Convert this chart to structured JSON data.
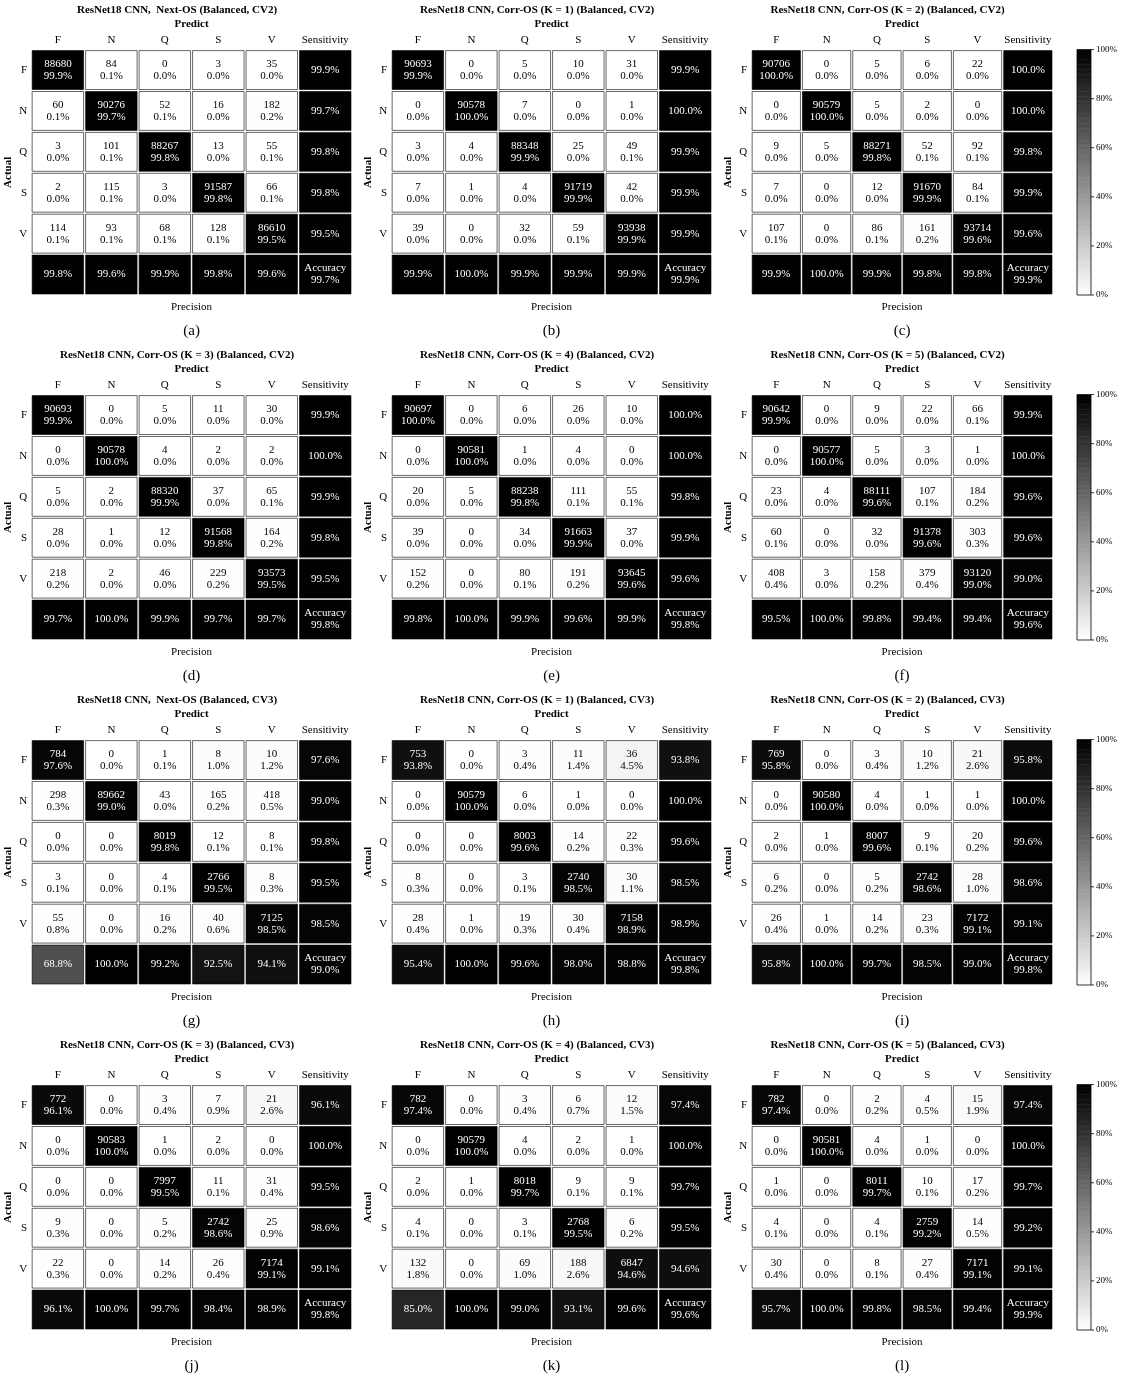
{
  "chart_data": [
    {
      "type": "heatmap",
      "title": "ResNet18 CNN,  Next-OS (Balanced, CV2)",
      "xlabel": "Predict",
      "ylabel": "Actual",
      "categories": [
        "F",
        "N",
        "Q",
        "S",
        "V",
        "Sensitivity"
      ],
      "y_categories": [
        "F",
        "N",
        "Q",
        "S",
        "V",
        null
      ],
      "cells": [
        [
          99.9,
          0.1,
          0.0,
          0.0,
          0.0,
          99.9
        ],
        [
          0.1,
          99.7,
          0.1,
          0.0,
          0.2,
          99.7
        ],
        [
          0.0,
          0.1,
          99.8,
          0.0,
          0.1,
          99.8
        ],
        [
          0.0,
          0.1,
          0.0,
          99.8,
          0.1,
          99.8
        ],
        [
          0.1,
          0.1,
          0.1,
          0.1,
          99.5,
          99.5
        ],
        [
          99.8,
          99.6,
          99.9,
          99.8,
          99.6,
          99.7
        ]
      ],
      "cell_labels": [
        [
          "99.9%",
          "0.1%",
          "0.0%",
          "0.0%",
          "0.0%",
          "99.9%"
        ],
        [
          "0.1%",
          "99.7%",
          "0.1%",
          "0.0%",
          "0.2%",
          "99.7%"
        ],
        [
          "0.0%",
          "0.1%",
          "99.8%",
          "0.0%",
          "0.1%",
          "99.8%"
        ],
        [
          "0.0%",
          "0.1%",
          "0.0%",
          "99.8%",
          "0.1%",
          "99.8%"
        ],
        [
          "0.1%",
          "0.1%",
          "0.1%",
          "0.1%",
          "99.5%",
          "99.5%"
        ],
        [
          "99.8%",
          "99.6%",
          "99.9%",
          "99.8%",
          "99.6%",
          "99.7%"
        ]
      ],
      "annotations": [
        "Precision",
        "(a)",
        "Accuracy",
        "88680",
        "84",
        "0",
        "3",
        "35",
        "60",
        "90276",
        "52",
        "16",
        "182",
        "3",
        "101",
        "88267",
        "13",
        "55",
        "2",
        "115",
        "3",
        "91587",
        "66",
        "114",
        "93",
        "68",
        "128",
        "86610"
      ]
    },
    {
      "type": "heatmap",
      "title": "ResNet18 CNN, Corr-OS (K = 1) (Balanced, CV2)",
      "xlabel": "Predict",
      "ylabel": "Actual",
      "categories": [
        "F",
        "N",
        "Q",
        "S",
        "V",
        "Sensitivity"
      ],
      "y_categories": [
        "F",
        "N",
        "Q",
        "S",
        "V",
        null
      ],
      "cells": [
        [
          99.9,
          0.0,
          0.0,
          0.0,
          0.0,
          99.9
        ],
        [
          0.0,
          100.0,
          0.0,
          0.0,
          0.0,
          100.0
        ],
        [
          0.0,
          0.0,
          99.9,
          0.0,
          0.1,
          99.9
        ],
        [
          0.0,
          0.0,
          0.0,
          99.9,
          0.0,
          99.9
        ],
        [
          0.0,
          0.0,
          0.0,
          0.1,
          99.9,
          99.9
        ],
        [
          99.9,
          100.0,
          99.9,
          99.9,
          99.9,
          99.9
        ]
      ],
      "cell_labels": [
        [
          "99.9%",
          "0.0%",
          "0.0%",
          "0.0%",
          "0.0%",
          "99.9%"
        ],
        [
          "0.0%",
          "100.0%",
          "0.0%",
          "0.0%",
          "0.0%",
          "100.0%"
        ],
        [
          "0.0%",
          "0.0%",
          "99.9%",
          "0.0%",
          "0.1%",
          "99.9%"
        ],
        [
          "0.0%",
          "0.0%",
          "0.0%",
          "99.9%",
          "0.0%",
          "99.9%"
        ],
        [
          "0.0%",
          "0.0%",
          "0.0%",
          "0.1%",
          "99.9%",
          "99.9%"
        ],
        [
          "99.9%",
          "100.0%",
          "99.9%",
          "99.9%",
          "99.9%",
          "99.9%"
        ]
      ],
      "annotations": [
        "Precision",
        "(b)",
        "Accuracy",
        "90693",
        "0",
        "5",
        "10",
        "31",
        "0",
        "90578",
        "7",
        "0",
        "1",
        "3",
        "4",
        "88348",
        "25",
        "49",
        "7",
        "1",
        "4",
        "91719",
        "42",
        "39",
        "0",
        "32",
        "59",
        "93938"
      ]
    },
    {
      "type": "heatmap",
      "title": "ResNet18 CNN, Corr-OS (K = 2) (Balanced, CV2)",
      "xlabel": "Predict",
      "ylabel": "Actual",
      "categories": [
        "F",
        "N",
        "Q",
        "S",
        "V",
        "Sensitivity"
      ],
      "y_categories": [
        "F",
        "N",
        "Q",
        "S",
        "V",
        null
      ],
      "cells": [
        [
          100.0,
          0.0,
          0.0,
          0.0,
          0.0,
          100.0
        ],
        [
          0.0,
          100.0,
          0.0,
          0.0,
          0.0,
          100.0
        ],
        [
          0.0,
          0.0,
          99.8,
          0.1,
          0.1,
          99.8
        ],
        [
          0.0,
          0.0,
          0.0,
          99.9,
          0.1,
          99.9
        ],
        [
          0.1,
          0.0,
          0.1,
          0.2,
          99.6,
          99.6
        ],
        [
          99.9,
          100.0,
          99.9,
          99.8,
          99.8,
          99.9
        ]
      ],
      "cell_labels": [
        [
          "100.0%",
          "0.0%",
          "0.0%",
          "0.0%",
          "0.0%",
          "100.0%"
        ],
        [
          "0.0%",
          "100.0%",
          "0.0%",
          "0.0%",
          "0.0%",
          "100.0%"
        ],
        [
          "0.0%",
          "0.0%",
          "99.8%",
          "0.1%",
          "0.1%",
          "99.8%"
        ],
        [
          "0.0%",
          "0.0%",
          "0.0%",
          "99.9%",
          "0.1%",
          "99.9%"
        ],
        [
          "0.1%",
          "0.0%",
          "0.1%",
          "0.2%",
          "99.6%",
          "99.6%"
        ],
        [
          "99.9%",
          "100.0%",
          "99.9%",
          "99.8%",
          "99.8%",
          "99.9%"
        ]
      ],
      "clim": [
        0,
        100
      ],
      "cticks": [
        {
          "value": 0,
          "label": "0%"
        },
        {
          "value": 20,
          "label": "20%"
        },
        {
          "value": 40,
          "label": "40%"
        },
        {
          "value": 60,
          "label": "60%"
        },
        {
          "value": 80,
          "label": "80%"
        },
        {
          "value": 100,
          "label": "100%"
        }
      ],
      "annotations": [
        "Precision",
        "(c)",
        "Accuracy",
        "90706",
        "0",
        "5",
        "6",
        "22",
        "0",
        "90579",
        "5",
        "2",
        "0",
        "9",
        "5",
        "88271",
        "52",
        "92",
        "7",
        "0",
        "12",
        "91670",
        "84",
        "107",
        "0",
        "86",
        "161",
        "93714"
      ]
    },
    {
      "type": "heatmap",
      "title": "ResNet18 CNN, Corr-OS (K = 3) (Balanced, CV2)",
      "xlabel": "Predict",
      "ylabel": "Actual",
      "categories": [
        "F",
        "N",
        "Q",
        "S",
        "V",
        "Sensitivity"
      ],
      "y_categories": [
        "F",
        "N",
        "Q",
        "S",
        "V",
        null
      ],
      "cells": [
        [
          99.9,
          0.0,
          0.0,
          0.0,
          0.0,
          99.9
        ],
        [
          0.0,
          100.0,
          0.0,
          0.0,
          0.0,
          100.0
        ],
        [
          0.0,
          0.0,
          99.9,
          0.0,
          0.1,
          99.9
        ],
        [
          0.0,
          0.0,
          0.0,
          99.8,
          0.2,
          99.8
        ],
        [
          0.2,
          0.0,
          0.0,
          0.2,
          99.5,
          99.5
        ],
        [
          99.7,
          100.0,
          99.9,
          99.7,
          99.7,
          99.8
        ]
      ],
      "cell_labels": [
        [
          "99.9%",
          "0.0%",
          "0.0%",
          "0.0%",
          "0.0%",
          "99.9%"
        ],
        [
          "0.0%",
          "100.0%",
          "0.0%",
          "0.0%",
          "0.0%",
          "100.0%"
        ],
        [
          "0.0%",
          "0.0%",
          "99.9%",
          "0.0%",
          "0.1%",
          "99.9%"
        ],
        [
          "0.0%",
          "0.0%",
          "0.0%",
          "99.8%",
          "0.2%",
          "99.8%"
        ],
        [
          "0.2%",
          "0.0%",
          "0.0%",
          "0.2%",
          "99.5%",
          "99.5%"
        ],
        [
          "99.7%",
          "100.0%",
          "99.9%",
          "99.7%",
          "99.7%",
          "99.8%"
        ]
      ],
      "annotations": [
        "Precision",
        "(d)",
        "Accuracy",
        "90693",
        "0",
        "5",
        "11",
        "30",
        "0",
        "90578",
        "4",
        "2",
        "2",
        "5",
        "2",
        "88320",
        "37",
        "65",
        "28",
        "1",
        "12",
        "91568",
        "164",
        "218",
        "2",
        "46",
        "229",
        "93573"
      ]
    },
    {
      "type": "heatmap",
      "title": "ResNet18 CNN, Corr-OS (K = 4) (Balanced, CV2)",
      "xlabel": "Predict",
      "ylabel": "Actual",
      "categories": [
        "F",
        "N",
        "Q",
        "S",
        "V",
        "Sensitivity"
      ],
      "y_categories": [
        "F",
        "N",
        "Q",
        "S",
        "V",
        null
      ],
      "cells": [
        [
          100.0,
          0.0,
          0.0,
          0.0,
          0.0,
          100.0
        ],
        [
          0.0,
          100.0,
          0.0,
          0.0,
          0.0,
          100.0
        ],
        [
          0.0,
          0.0,
          99.8,
          0.1,
          0.1,
          99.8
        ],
        [
          0.0,
          0.0,
          0.0,
          99.9,
          0.0,
          99.9
        ],
        [
          0.2,
          0.0,
          0.1,
          0.2,
          99.6,
          99.6
        ],
        [
          99.8,
          100.0,
          99.9,
          99.6,
          99.9,
          99.8
        ]
      ],
      "cell_labels": [
        [
          "100.0%",
          "0.0%",
          "0.0%",
          "0.0%",
          "0.0%",
          "100.0%"
        ],
        [
          "0.0%",
          "100.0%",
          "0.0%",
          "0.0%",
          "0.0%",
          "100.0%"
        ],
        [
          "0.0%",
          "0.0%",
          "99.8%",
          "0.1%",
          "0.1%",
          "99.8%"
        ],
        [
          "0.0%",
          "0.0%",
          "0.0%",
          "99.9%",
          "0.0%",
          "99.9%"
        ],
        [
          "0.2%",
          "0.0%",
          "0.1%",
          "0.2%",
          "99.6%",
          "99.6%"
        ],
        [
          "99.8%",
          "100.0%",
          "99.9%",
          "99.6%",
          "99.9%",
          "99.8%"
        ]
      ],
      "annotations": [
        "Precision",
        "(e)",
        "Accuracy",
        "90697",
        "0",
        "6",
        "26",
        "10",
        "0",
        "90581",
        "1",
        "4",
        "0",
        "20",
        "5",
        "88238",
        "111",
        "55",
        "39",
        "0",
        "34",
        "91663",
        "37",
        "152",
        "0",
        "80",
        "191",
        "93645"
      ]
    },
    {
      "type": "heatmap",
      "title": "ResNet18 CNN, Corr-OS (K = 5) (Balanced, CV2)",
      "xlabel": "Predict",
      "ylabel": "Actual",
      "categories": [
        "F",
        "N",
        "Q",
        "S",
        "V",
        "Sensitivity"
      ],
      "y_categories": [
        "F",
        "N",
        "Q",
        "S",
        "V",
        null
      ],
      "cells": [
        [
          99.9,
          0.0,
          0.0,
          0.0,
          0.1,
          99.9
        ],
        [
          0.0,
          100.0,
          0.0,
          0.0,
          0.0,
          100.0
        ],
        [
          0.0,
          0.0,
          99.6,
          0.1,
          0.2,
          99.6
        ],
        [
          0.1,
          0.0,
          0.0,
          99.6,
          0.3,
          99.6
        ],
        [
          0.4,
          0.0,
          0.2,
          0.4,
          99.0,
          99.0
        ],
        [
          99.5,
          100.0,
          99.8,
          99.4,
          99.4,
          99.6
        ]
      ],
      "cell_labels": [
        [
          "99.9%",
          "0.0%",
          "0.0%",
          "0.0%",
          "0.1%",
          "99.9%"
        ],
        [
          "0.0%",
          "100.0%",
          "0.0%",
          "0.0%",
          "0.0%",
          "100.0%"
        ],
        [
          "0.0%",
          "0.0%",
          "99.6%",
          "0.1%",
          "0.2%",
          "99.6%"
        ],
        [
          "0.1%",
          "0.0%",
          "0.0%",
          "99.6%",
          "0.3%",
          "99.6%"
        ],
        [
          "0.4%",
          "0.0%",
          "0.2%",
          "0.4%",
          "99.0%",
          "99.0%"
        ],
        [
          "99.5%",
          "100.0%",
          "99.8%",
          "99.4%",
          "99.4%",
          "99.6%"
        ]
      ],
      "clim": [
        0,
        100
      ],
      "cticks": [
        {
          "value": 0,
          "label": "0%"
        },
        {
          "value": 20,
          "label": "20%"
        },
        {
          "value": 40,
          "label": "40%"
        },
        {
          "value": 60,
          "label": "60%"
        },
        {
          "value": 80,
          "label": "80%"
        },
        {
          "value": 100,
          "label": "100%"
        }
      ],
      "annotations": [
        "Precision",
        "(f)",
        "Accuracy",
        "90642",
        "0",
        "9",
        "22",
        "66",
        "0",
        "90577",
        "5",
        "3",
        "1",
        "23",
        "4",
        "88111",
        "107",
        "184",
        "60",
        "0",
        "32",
        "91378",
        "303",
        "408",
        "3",
        "158",
        "379",
        "93120"
      ]
    },
    {
      "type": "heatmap",
      "title": "ResNet18 CNN,  Next-OS (Balanced, CV3)",
      "xlabel": "Predict",
      "ylabel": "Actual",
      "categories": [
        "F",
        "N",
        "Q",
        "S",
        "V",
        "Sensitivity"
      ],
      "y_categories": [
        "F",
        "N",
        "Q",
        "S",
        "V",
        null
      ],
      "cells": [
        [
          97.6,
          0.0,
          0.1,
          1.0,
          1.2,
          97.6
        ],
        [
          0.3,
          99.0,
          0.0,
          0.2,
          0.5,
          99.0
        ],
        [
          0.0,
          0.0,
          99.8,
          0.1,
          0.1,
          99.8
        ],
        [
          0.1,
          0.0,
          0.1,
          99.5,
          0.3,
          99.5
        ],
        [
          0.8,
          0.0,
          0.2,
          0.6,
          98.5,
          98.5
        ],
        [
          68.8,
          100.0,
          99.2,
          92.5,
          94.1,
          99.0
        ]
      ],
      "cell_labels": [
        [
          "97.6%",
          "0.0%",
          "0.1%",
          "1.0%",
          "1.2%",
          "97.6%"
        ],
        [
          "0.3%",
          "99.0%",
          "0.0%",
          "0.2%",
          "0.5%",
          "99.0%"
        ],
        [
          "0.0%",
          "0.0%",
          "99.8%",
          "0.1%",
          "0.1%",
          "99.8%"
        ],
        [
          "0.1%",
          "0.0%",
          "0.1%",
          "99.5%",
          "0.3%",
          "99.5%"
        ],
        [
          "0.8%",
          "0.0%",
          "0.2%",
          "0.6%",
          "98.5%",
          "98.5%"
        ],
        [
          "68.8%",
          "100.0%",
          "99.2%",
          "92.5%",
          "94.1%",
          "99.0%"
        ]
      ],
      "annotations": [
        "Precision",
        "(g)",
        "Accuracy",
        "784",
        "0",
        "1",
        "8",
        "10",
        "298",
        "89662",
        "43",
        "165",
        "418",
        "0",
        "0",
        "8019",
        "12",
        "8",
        "3",
        "0",
        "4",
        "2766",
        "8",
        "55",
        "0",
        "16",
        "40",
        "7125"
      ]
    },
    {
      "type": "heatmap",
      "title": "ResNet18 CNN, Corr-OS (K = 1) (Balanced, CV3)",
      "xlabel": "Predict",
      "ylabel": "Actual",
      "categories": [
        "F",
        "N",
        "Q",
        "S",
        "V",
        "Sensitivity"
      ],
      "y_categories": [
        "F",
        "N",
        "Q",
        "S",
        "V",
        null
      ],
      "cells": [
        [
          93.8,
          0.0,
          0.4,
          1.4,
          4.5,
          93.8
        ],
        [
          0.0,
          100.0,
          0.0,
          0.0,
          0.0,
          100.0
        ],
        [
          0.0,
          0.0,
          99.6,
          0.2,
          0.3,
          99.6
        ],
        [
          0.3,
          0.0,
          0.1,
          98.5,
          1.1,
          98.5
        ],
        [
          0.4,
          0.0,
          0.3,
          0.4,
          98.9,
          98.9
        ],
        [
          95.4,
          100.0,
          99.6,
          98.0,
          98.8,
          99.8
        ]
      ],
      "cell_labels": [
        [
          "93.8%",
          "0.0%",
          "0.4%",
          "1.4%",
          "4.5%",
          "93.8%"
        ],
        [
          "0.0%",
          "100.0%",
          "0.0%",
          "0.0%",
          "0.0%",
          "100.0%"
        ],
        [
          "0.0%",
          "0.0%",
          "99.6%",
          "0.2%",
          "0.3%",
          "99.6%"
        ],
        [
          "0.3%",
          "0.0%",
          "0.1%",
          "98.5%",
          "1.1%",
          "98.5%"
        ],
        [
          "0.4%",
          "0.0%",
          "0.3%",
          "0.4%",
          "98.9%",
          "98.9%"
        ],
        [
          "95.4%",
          "100.0%",
          "99.6%",
          "98.0%",
          "98.8%",
          "99.8%"
        ]
      ],
      "annotations": [
        "Precision",
        "(h)",
        "Accuracy",
        "753",
        "0",
        "3",
        "11",
        "36",
        "0",
        "90579",
        "6",
        "1",
        "0",
        "0",
        "0",
        "8003",
        "14",
        "22",
        "8",
        "0",
        "3",
        "2740",
        "30",
        "28",
        "1",
        "19",
        "30",
        "7158"
      ]
    },
    {
      "type": "heatmap",
      "title": "ResNet18 CNN, Corr-OS (K = 2) (Balanced, CV3)",
      "xlabel": "Predict",
      "ylabel": "Actual",
      "categories": [
        "F",
        "N",
        "Q",
        "S",
        "V",
        "Sensitivity"
      ],
      "y_categories": [
        "F",
        "N",
        "Q",
        "S",
        "V",
        null
      ],
      "cells": [
        [
          95.8,
          0.0,
          0.4,
          1.2,
          2.6,
          95.8
        ],
        [
          0.0,
          100.0,
          0.0,
          0.0,
          0.0,
          100.0
        ],
        [
          0.0,
          0.0,
          99.6,
          0.1,
          0.2,
          99.6
        ],
        [
          0.2,
          0.0,
          0.2,
          98.6,
          1.0,
          98.6
        ],
        [
          0.4,
          0.0,
          0.2,
          0.3,
          99.1,
          99.1
        ],
        [
          95.8,
          100.0,
          99.7,
          98.5,
          99.0,
          99.8
        ]
      ],
      "cell_labels": [
        [
          "95.8%",
          "0.0%",
          "0.4%",
          "1.2%",
          "2.6%",
          "95.8%"
        ],
        [
          "0.0%",
          "100.0%",
          "0.0%",
          "0.0%",
          "0.0%",
          "100.0%"
        ],
        [
          "0.0%",
          "0.0%",
          "99.6%",
          "0.1%",
          "0.2%",
          "99.6%"
        ],
        [
          "0.2%",
          "0.0%",
          "0.2%",
          "98.6%",
          "1.0%",
          "98.6%"
        ],
        [
          "0.4%",
          "0.0%",
          "0.2%",
          "0.3%",
          "99.1%",
          "99.1%"
        ],
        [
          "95.8%",
          "100.0%",
          "99.7%",
          "98.5%",
          "99.0%",
          "99.8%"
        ]
      ],
      "clim": [
        0,
        100
      ],
      "cticks": [
        {
          "value": 0,
          "label": "0%"
        },
        {
          "value": 20,
          "label": "20%"
        },
        {
          "value": 40,
          "label": "40%"
        },
        {
          "value": 60,
          "label": "60%"
        },
        {
          "value": 80,
          "label": "80%"
        },
        {
          "value": 100,
          "label": "100%"
        }
      ],
      "annotations": [
        "Precision",
        "(i)",
        "Accuracy",
        "769",
        "0",
        "3",
        "10",
        "21",
        "0",
        "90580",
        "4",
        "1",
        "1",
        "2",
        "1",
        "8007",
        "9",
        "20",
        "6",
        "0",
        "5",
        "2742",
        "28",
        "26",
        "1",
        "14",
        "23",
        "7172"
      ]
    },
    {
      "type": "heatmap",
      "title": "ResNet18 CNN, Corr-OS (K = 3) (Balanced, CV3)",
      "xlabel": "Predict",
      "ylabel": "Actual",
      "categories": [
        "F",
        "N",
        "Q",
        "S",
        "V",
        "Sensitivity"
      ],
      "y_categories": [
        "F",
        "N",
        "Q",
        "S",
        "V",
        null
      ],
      "cells": [
        [
          96.1,
          0.0,
          0.4,
          0.9,
          2.6,
          96.1
        ],
        [
          0.0,
          100.0,
          0.0,
          0.0,
          0.0,
          100.0
        ],
        [
          0.0,
          0.0,
          99.5,
          0.1,
          0.4,
          99.5
        ],
        [
          0.3,
          0.0,
          0.2,
          98.6,
          0.9,
          98.6
        ],
        [
          0.3,
          0.0,
          0.2,
          0.4,
          99.1,
          99.1
        ],
        [
          96.1,
          100.0,
          99.7,
          98.4,
          98.9,
          99.8
        ]
      ],
      "cell_labels": [
        [
          "96.1%",
          "0.0%",
          "0.4%",
          "0.9%",
          "2.6%",
          "96.1%"
        ],
        [
          "0.0%",
          "100.0%",
          "0.0%",
          "0.0%",
          "0.0%",
          "100.0%"
        ],
        [
          "0.0%",
          "0.0%",
          "99.5%",
          "0.1%",
          "0.4%",
          "99.5%"
        ],
        [
          "0.3%",
          "0.0%",
          "0.2%",
          "98.6%",
          "0.9%",
          "98.6%"
        ],
        [
          "0.3%",
          "0.0%",
          "0.2%",
          "0.4%",
          "99.1%",
          "99.1%"
        ],
        [
          "96.1%",
          "100.0%",
          "99.7%",
          "98.4%",
          "98.9%",
          "99.8%"
        ]
      ],
      "annotations": [
        "Precision",
        "(j)",
        "Accuracy",
        "772",
        "0",
        "3",
        "7",
        "21",
        "0",
        "90583",
        "1",
        "2",
        "0",
        "0",
        "0",
        "7997",
        "11",
        "31",
        "9",
        "0",
        "5",
        "2742",
        "25",
        "22",
        "0",
        "14",
        "26",
        "7174"
      ]
    },
    {
      "type": "heatmap",
      "title": "ResNet18 CNN, Corr-OS (K = 4) (Balanced, CV3)",
      "xlabel": "Predict",
      "ylabel": "Actual",
      "categories": [
        "F",
        "N",
        "Q",
        "S",
        "V",
        "Sensitivity"
      ],
      "y_categories": [
        "F",
        "N",
        "Q",
        "S",
        "V",
        null
      ],
      "cells": [
        [
          97.4,
          0.0,
          0.4,
          0.7,
          1.5,
          97.4
        ],
        [
          0.0,
          100.0,
          0.0,
          0.0,
          0.0,
          100.0
        ],
        [
          0.0,
          0.0,
          99.7,
          0.1,
          0.1,
          99.7
        ],
        [
          0.1,
          0.0,
          0.1,
          99.5,
          0.2,
          99.5
        ],
        [
          1.8,
          0.0,
          1.0,
          2.6,
          94.6,
          94.6
        ],
        [
          85.0,
          100.0,
          99.0,
          93.1,
          99.6,
          99.6
        ]
      ],
      "cell_labels": [
        [
          "97.4%",
          "0.0%",
          "0.4%",
          "0.7%",
          "1.5%",
          "97.4%"
        ],
        [
          "0.0%",
          "100.0%",
          "0.0%",
          "0.0%",
          "0.0%",
          "100.0%"
        ],
        [
          "0.0%",
          "0.0%",
          "99.7%",
          "0.1%",
          "0.1%",
          "99.7%"
        ],
        [
          "0.1%",
          "0.0%",
          "0.1%",
          "99.5%",
          "0.2%",
          "99.5%"
        ],
        [
          "1.8%",
          "0.0%",
          "1.0%",
          "2.6%",
          "94.6%",
          "94.6%"
        ],
        [
          "85.0%",
          "100.0%",
          "99.0%",
          "93.1%",
          "99.6%",
          "99.6%"
        ]
      ],
      "annotations": [
        "Precision",
        "(k)",
        "Accuracy",
        "782",
        "0",
        "3",
        "6",
        "12",
        "0",
        "90579",
        "4",
        "2",
        "1",
        "2",
        "1",
        "8018",
        "9",
        "9",
        "4",
        "0",
        "3",
        "2768",
        "6",
        "132",
        "0",
        "69",
        "188",
        "6847"
      ]
    },
    {
      "type": "heatmap",
      "title": "ResNet18 CNN, Corr-OS (K = 5) (Balanced, CV3)",
      "xlabel": "Predict",
      "ylabel": "Actual",
      "categories": [
        "F",
        "N",
        "Q",
        "S",
        "V",
        "Sensitivity"
      ],
      "y_categories": [
        "F",
        "N",
        "Q",
        "S",
        "V",
        null
      ],
      "cells": [
        [
          97.4,
          0.0,
          0.2,
          0.5,
          1.9,
          97.4
        ],
        [
          0.0,
          100.0,
          0.0,
          0.0,
          0.0,
          100.0
        ],
        [
          0.0,
          0.0,
          99.7,
          0.1,
          0.2,
          99.7
        ],
        [
          0.1,
          0.0,
          0.1,
          99.2,
          0.5,
          99.2
        ],
        [
          0.4,
          0.0,
          0.1,
          0.4,
          99.1,
          99.1
        ],
        [
          95.7,
          100.0,
          99.8,
          98.5,
          99.4,
          99.9
        ]
      ],
      "cell_labels": [
        [
          "97.4%",
          "0.0%",
          "0.2%",
          "0.5%",
          "1.9%",
          "97.4%"
        ],
        [
          "0.0%",
          "100.0%",
          "0.0%",
          "0.0%",
          "0.0%",
          "100.0%"
        ],
        [
          "0.0%",
          "0.0%",
          "99.7%",
          "0.1%",
          "0.2%",
          "99.7%"
        ],
        [
          "0.1%",
          "0.0%",
          "0.1%",
          "99.2%",
          "0.5%",
          "99.2%"
        ],
        [
          "0.4%",
          "0.0%",
          "0.1%",
          "0.4%",
          "99.1%",
          "99.1%"
        ],
        [
          "95.7%",
          "100.0%",
          "99.8%",
          "98.5%",
          "99.4%",
          "99.9%"
        ]
      ],
      "clim": [
        0,
        100
      ],
      "cticks": [
        {
          "value": 0,
          "label": "0%"
        },
        {
          "value": 20,
          "label": "20%"
        },
        {
          "value": 40,
          "label": "40%"
        },
        {
          "value": 60,
          "label": "60%"
        },
        {
          "value": 80,
          "label": "80%"
        },
        {
          "value": 100,
          "label": "100%"
        }
      ],
      "annotations": [
        "Precision",
        "(l)",
        "Accuracy",
        "782",
        "0",
        "2",
        "4",
        "15",
        "0",
        "90581",
        "4",
        "1",
        "0",
        "1",
        "0",
        "8011",
        "10",
        "17",
        "4",
        "0",
        "4",
        "2759",
        "14",
        "30",
        "0",
        "8",
        "27",
        "7171"
      ]
    }
  ]
}
